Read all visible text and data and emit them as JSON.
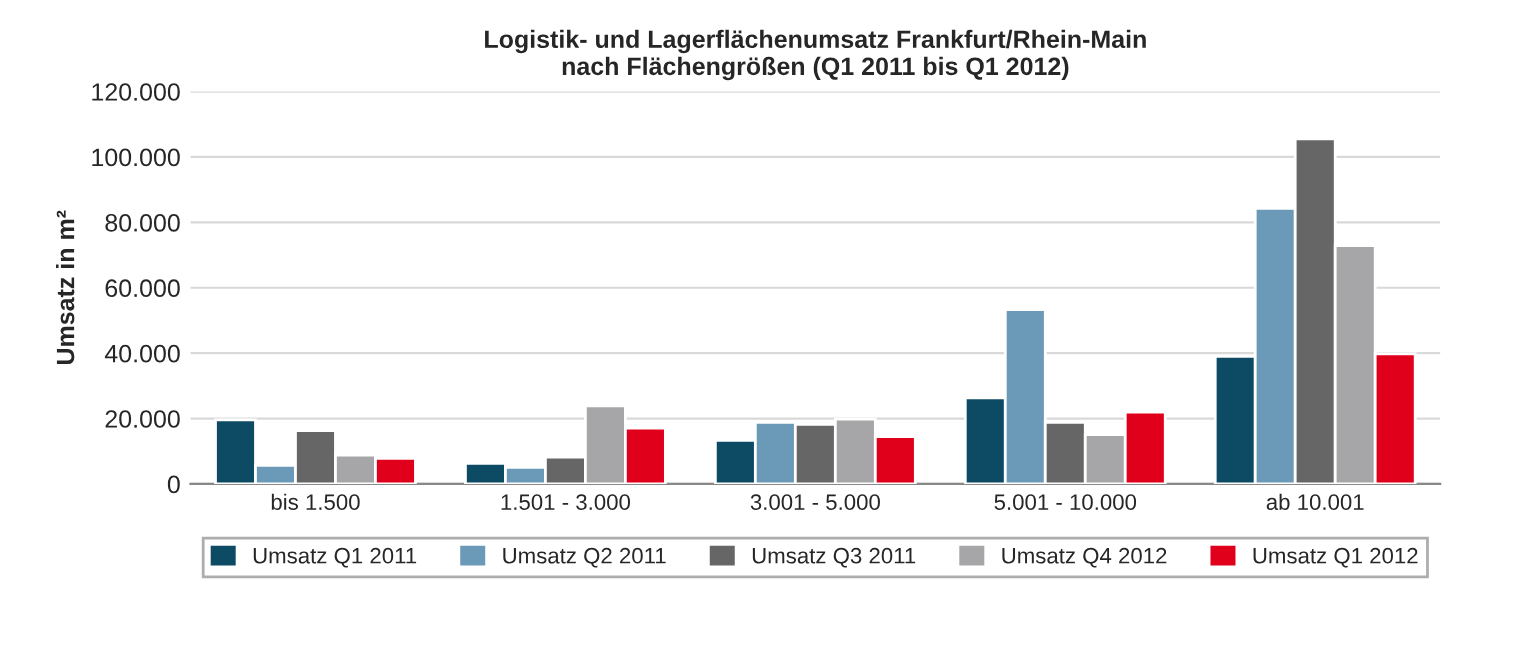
{
  "chart_data": {
    "type": "bar",
    "title": "Logistik- und Lagerflächenumsatz Frankfurt/Rhein-Main\nnach Flächengrößen (Q1 2011 bis Q1 2012)",
    "ylabel": "Umsatz in m²",
    "categories": [
      "bis 1.500",
      "1.501 - 3.000",
      "3.001 - 5.000",
      "5.001 - 10.000",
      "ab 10.001"
    ],
    "series": [
      {
        "name": "Umsatz Q1 2011",
        "color": "#0d4a63",
        "values": [
          19600,
          6300,
          13300,
          26300,
          39000
        ]
      },
      {
        "name": "Umsatz Q2 2011",
        "color": "#6b9ab8",
        "values": [
          5700,
          5100,
          18800,
          53300,
          84300
        ]
      },
      {
        "name": "Umsatz Q3 2011",
        "color": "#666666",
        "values": [
          16300,
          8200,
          18200,
          18800,
          105500
        ]
      },
      {
        "name": "Umsatz Q4 2012",
        "color": "#a6a6a8",
        "values": [
          8800,
          23900,
          19800,
          15100,
          72900
        ]
      },
      {
        "name": "Umsatz Q1 2012",
        "color": "#e0001b",
        "values": [
          7800,
          17100,
          14500,
          22000,
          39800
        ]
      }
    ],
    "ylim": [
      0,
      120000
    ],
    "yticks": [
      {
        "value": 0,
        "label": "0"
      },
      {
        "value": 20000,
        "label": "20.000"
      },
      {
        "value": 40000,
        "label": "40.000"
      },
      {
        "value": 60000,
        "label": "60.000"
      },
      {
        "value": 80000,
        "label": "80.000"
      },
      {
        "value": 100000,
        "label": "100.000"
      },
      {
        "value": 120000,
        "label": "120.000"
      }
    ],
    "grid": "y",
    "legend": "bottom"
  }
}
